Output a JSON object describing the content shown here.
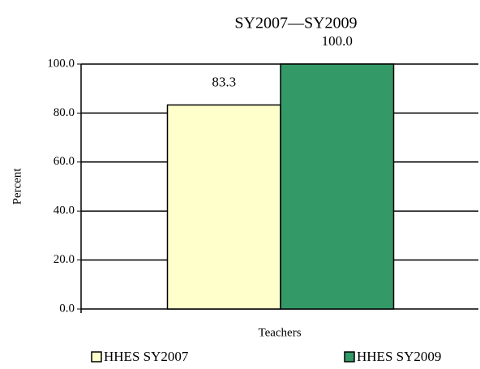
{
  "chart_data": {
    "type": "bar",
    "title": "SY2007—SY2009",
    "y_label": "Percent",
    "categories": [
      "Teachers"
    ],
    "series": [
      {
        "name": "HHES SY2007",
        "color": "#ffffcc",
        "values": [
          83.3
        ],
        "value_labels": [
          "83.3"
        ]
      },
      {
        "name": "HHES SY2009",
        "color": "#339966",
        "values": [
          100
        ],
        "value_labels": [
          "100.0"
        ]
      }
    ],
    "ylim": [
      0,
      100
    ],
    "yticks": [
      {
        "value": 0,
        "label": "0.0"
      },
      {
        "value": 20,
        "label": "20.0"
      },
      {
        "value": 40,
        "label": "40.0"
      },
      {
        "value": 60,
        "label": "60.0"
      },
      {
        "value": 80,
        "label": "80.0"
      },
      {
        "value": 100,
        "label": "100.0"
      }
    ],
    "grid": true
  }
}
